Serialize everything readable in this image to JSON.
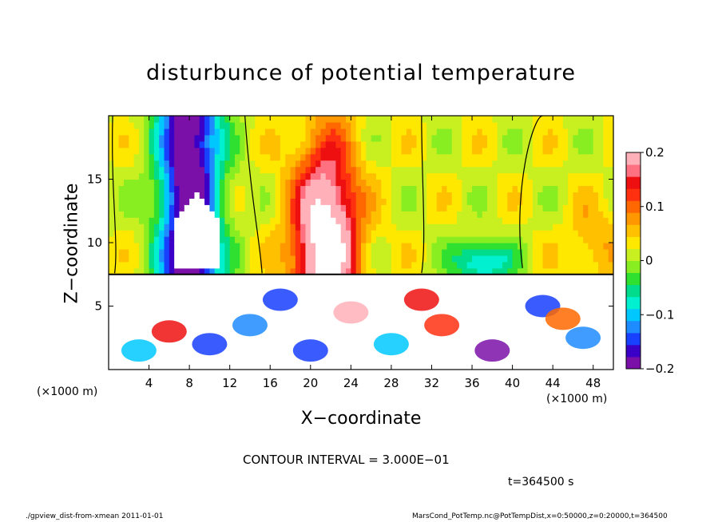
{
  "figure": {
    "title": "disturbunce of potential temperature",
    "xlabel": "X−coordinate",
    "ylabel": "Z−coordinate",
    "x_unit_left": "(×1000 m)",
    "x_unit_right": "(×1000 m)",
    "contour_interval": "CONTOUR INTERVAL = 3.000E−01",
    "time_label": "t=364500 s",
    "footer_left": "./gpview_dist-from-xmean  2011-01-01",
    "footer_right": "MarsCond_PotTemp.nc@PotTempDist,x=0:50000,z=0:20000,t=364500"
  },
  "chart_data": {
    "type": "heatmap",
    "title": "disturbunce of potential temperature",
    "xlabel": "X−coordinate",
    "ylabel": "Z−coordinate",
    "x_unit": "(×1000 m)",
    "xlim": [
      0,
      50
    ],
    "ylim": [
      0,
      20
    ],
    "x_ticks": [
      4,
      8,
      12,
      16,
      20,
      24,
      28,
      32,
      36,
      40,
      44,
      48
    ],
    "y_ticks": [
      5,
      10,
      15
    ],
    "colorbar": {
      "range": [
        -0.2,
        0.2
      ],
      "ticks": [
        0.2,
        0.1,
        0,
        -0.1,
        -0.2
      ],
      "tick_labels": [
        "0.2",
        "0.1",
        "0",
        "−0.1",
        "−0.2"
      ],
      "colors": [
        "#7a10a8",
        "#3b00c8",
        "#1840ff",
        "#1e8cff",
        "#00c8ff",
        "#00f0d0",
        "#00dc8c",
        "#30e030",
        "#88ee22",
        "#c8f020",
        "#ffe800",
        "#ffc000",
        "#ff9800",
        "#ff6800",
        "#ff3010",
        "#ee1010",
        "#ff7080",
        "#ffb0b8"
      ]
    },
    "contour_interval": 0.3,
    "fields": {
      "upper_layer_z_range": [
        7.5,
        20
      ],
      "features": [
        {
          "name": "cold plume",
          "x_center": 8,
          "z_range": [
            7.5,
            20
          ],
          "value": -0.2
        },
        {
          "name": "warm plume",
          "x_center": 21,
          "z_range": [
            7.5,
            20
          ],
          "value": 0.2
        },
        {
          "name": "cold patch",
          "x_center": 37,
          "z_range": [
            7.5,
            10
          ],
          "value": -0.1
        },
        {
          "name": "background",
          "value": 0.02
        }
      ]
    }
  }
}
